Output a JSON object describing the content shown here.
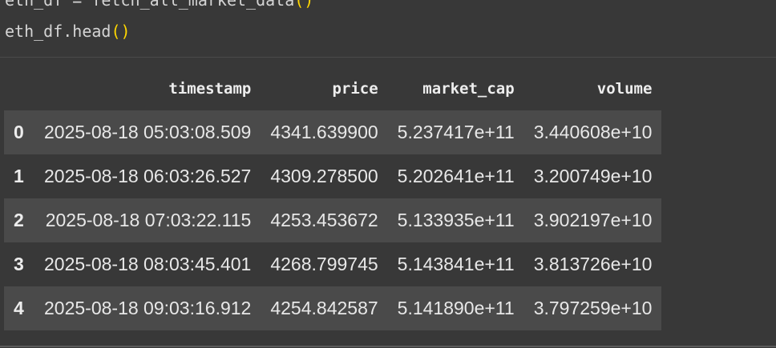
{
  "code": {
    "line1_prefix": "eth_df = fetch_all_market_data",
    "line1_parens": "()",
    "line2_prefix": "eth_df.head",
    "line2_parens": "()"
  },
  "table": {
    "columns": [
      "timestamp",
      "price",
      "market_cap",
      "volume"
    ],
    "rows": [
      {
        "index": "0",
        "timestamp": "2025-08-18 05:03:08.509",
        "price": "4341.639900",
        "market_cap": "5.237417e+11",
        "volume": "3.440608e+10"
      },
      {
        "index": "1",
        "timestamp": "2025-08-18 06:03:26.527",
        "price": "4309.278500",
        "market_cap": "5.202641e+11",
        "volume": "3.200749e+10"
      },
      {
        "index": "2",
        "timestamp": "2025-08-18 07:03:22.115",
        "price": "4253.453672",
        "market_cap": "5.133935e+11",
        "volume": "3.902197e+10"
      },
      {
        "index": "3",
        "timestamp": "2025-08-18 08:03:45.401",
        "price": "4268.799745",
        "market_cap": "5.143841e+11",
        "volume": "3.813726e+10"
      },
      {
        "index": "4",
        "timestamp": "2025-08-18 09:03:16.912",
        "price": "4254.842587",
        "market_cap": "5.141890e+11",
        "volume": "3.797259e+10"
      }
    ]
  },
  "colors": {
    "background": "#383838",
    "odd_row": "#4a4a4a",
    "paren": "#ffd700"
  }
}
